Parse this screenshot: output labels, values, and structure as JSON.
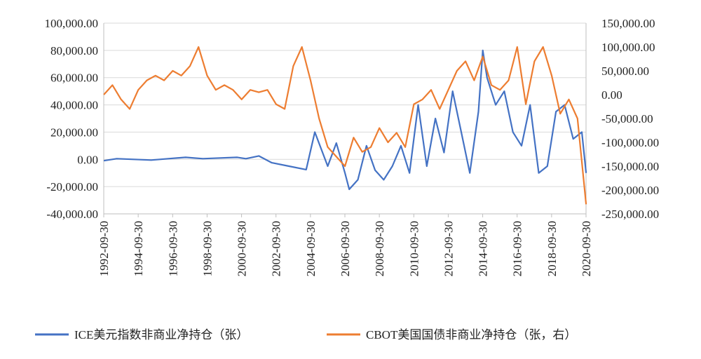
{
  "chart_data": {
    "type": "line",
    "x_ticks": [
      "1992-09-30",
      "1994-09-30",
      "1996-09-30",
      "1998-09-30",
      "2000-09-30",
      "2002-09-30",
      "2004-09-30",
      "2006-09-30",
      "2008-09-30",
      "2010-09-30",
      "2012-09-30",
      "2014-09-30",
      "2016-09-30",
      "2018-09-30",
      "2020-09-30"
    ],
    "x_range": [
      "1992-09-30",
      "2020-09-30"
    ],
    "y_left": {
      "range": [
        -40000,
        100000
      ],
      "ticks": [
        "100,000.00",
        "80,000.00",
        "60,000.00",
        "40,000.00",
        "20,000.00",
        "0.00",
        "-20,000.00",
        "-40,000.00"
      ]
    },
    "y_right": {
      "range": [
        -250000,
        150000
      ],
      "ticks": [
        "150,000.00",
        "100,000.00",
        "50,000.00",
        "0.00",
        "-50,000.00",
        "-100,000.00",
        "-150,000.00",
        "-200,000.00",
        "-250,000.00"
      ]
    },
    "grid": "horizontal",
    "legend_position": "bottom",
    "series": [
      {
        "name": "ICE美元指数非商业净持仓（张）",
        "axis": "left",
        "color": "#4472C4",
        "x": [
          1992.75,
          1993.5,
          1994.5,
          1995.5,
          1996.5,
          1997.5,
          1998.5,
          1999.5,
          2000.5,
          2001.0,
          2001.75,
          2002.5,
          2003.5,
          2004.5,
          2005.0,
          2005.75,
          2006.25,
          2006.75,
          2007.0,
          2007.5,
          2008.0,
          2008.5,
          2009.0,
          2009.5,
          2010.0,
          2010.5,
          2011.0,
          2011.5,
          2012.0,
          2012.5,
          2013.0,
          2013.5,
          2014.0,
          2014.5,
          2014.75,
          2015.0,
          2015.5,
          2016.0,
          2016.5,
          2017.0,
          2017.5,
          2018.0,
          2018.5,
          2019.0,
          2019.5,
          2020.0,
          2020.5,
          2020.75
        ],
        "y": [
          -1000,
          500,
          0,
          -500,
          500,
          1500,
          500,
          1000,
          1500,
          500,
          2500,
          -2500,
          -5000,
          -7500,
          20000,
          -5000,
          12000,
          -10000,
          -22000,
          -15000,
          10000,
          -8000,
          -15000,
          -5000,
          10000,
          -10000,
          40000,
          -5000,
          30000,
          5000,
          50000,
          20000,
          -10000,
          35000,
          80000,
          60000,
          40000,
          50000,
          20000,
          10000,
          40000,
          -10000,
          -5000,
          35000,
          40000,
          15000,
          20000,
          -10000
        ]
      },
      {
        "name": "CBOT美国国债非商业净持仓（张，右）",
        "axis": "right",
        "color": "#ED7D31",
        "x": [
          1992.75,
          1993.25,
          1993.75,
          1994.25,
          1994.75,
          1995.25,
          1995.75,
          1996.25,
          1996.75,
          1997.25,
          1997.75,
          1998.25,
          1998.75,
          1999.25,
          1999.75,
          2000.25,
          2000.75,
          2001.25,
          2001.75,
          2002.25,
          2002.75,
          2003.25,
          2003.75,
          2004.25,
          2004.75,
          2005.25,
          2005.75,
          2006.25,
          2006.75,
          2007.25,
          2007.75,
          2008.25,
          2008.75,
          2009.25,
          2009.75,
          2010.25,
          2010.75,
          2011.25,
          2011.75,
          2012.25,
          2012.75,
          2013.25,
          2013.75,
          2014.25,
          2014.75,
          2015.25,
          2015.75,
          2016.25,
          2016.75,
          2017.25,
          2017.75,
          2018.25,
          2018.75,
          2019.25,
          2019.75,
          2020.25,
          2020.75
        ],
        "y": [
          0,
          20000,
          -10000,
          -30000,
          10000,
          30000,
          40000,
          30000,
          50000,
          40000,
          60000,
          100000,
          40000,
          10000,
          20000,
          10000,
          -10000,
          10000,
          5000,
          10000,
          -20000,
          -30000,
          60000,
          100000,
          30000,
          -50000,
          -110000,
          -130000,
          -150000,
          -90000,
          -120000,
          -110000,
          -70000,
          -100000,
          -80000,
          -110000,
          -20000,
          -10000,
          10000,
          -30000,
          10000,
          50000,
          70000,
          30000,
          80000,
          20000,
          10000,
          30000,
          100000,
          -20000,
          70000,
          100000,
          40000,
          -40000,
          -10000,
          -50000,
          -230000
        ]
      }
    ]
  }
}
